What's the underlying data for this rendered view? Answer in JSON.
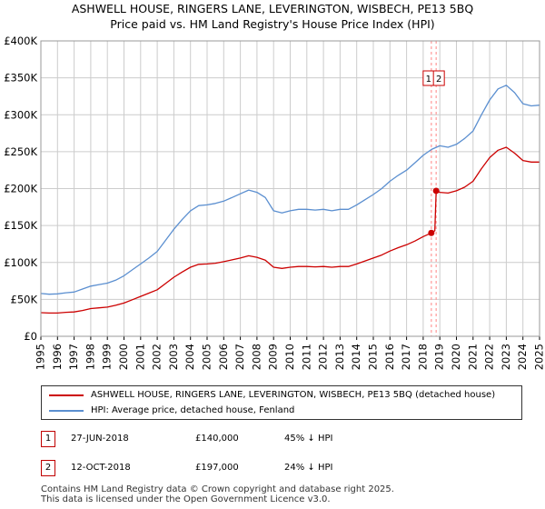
{
  "header": {
    "title_line1": "ASHWELL HOUSE, RINGERS LANE, LEVERINGTON, WISBECH, PE13 5BQ",
    "title_line2": "Price paid vs. HM Land Registry's House Price Index (HPI)"
  },
  "colors": {
    "property": "#cc0000",
    "hpi": "#5b8fd0",
    "grid": "#cccccc",
    "marker_line": "#ff9999"
  },
  "chart_data": {
    "type": "line",
    "title": "Price paid vs. HM Land Registry's House Price Index (HPI)",
    "xlabel": "",
    "ylabel": "",
    "xlim": [
      1995,
      2025
    ],
    "ylim": [
      0,
      400000
    ],
    "y_ticks": [
      {
        "value": 0,
        "label": "£0"
      },
      {
        "value": 50000,
        "label": "£50K"
      },
      {
        "value": 100000,
        "label": "£100K"
      },
      {
        "value": 150000,
        "label": "£150K"
      },
      {
        "value": 200000,
        "label": "£200K"
      },
      {
        "value": 250000,
        "label": "£250K"
      },
      {
        "value": 300000,
        "label": "£300K"
      },
      {
        "value": 350000,
        "label": "£350K"
      },
      {
        "value": 400000,
        "label": "£400K"
      }
    ],
    "x_ticks": [
      "1995",
      "1996",
      "1997",
      "1998",
      "1999",
      "2000",
      "2001",
      "2002",
      "2003",
      "2004",
      "2005",
      "2006",
      "2007",
      "2008",
      "2009",
      "2010",
      "2011",
      "2012",
      "2013",
      "2014",
      "2015",
      "2016",
      "2017",
      "2018",
      "2019",
      "2020",
      "2021",
      "2022",
      "2023",
      "2024",
      "2025"
    ],
    "series": [
      {
        "name": "HPI: Average price, detached house, Fenland",
        "color": "#5b8fd0",
        "points": [
          [
            1995,
            58000
          ],
          [
            1995.5,
            57000
          ],
          [
            1996,
            57500
          ],
          [
            1996.5,
            59000
          ],
          [
            1997,
            60000
          ],
          [
            1997.5,
            64000
          ],
          [
            1998,
            68000
          ],
          [
            1998.5,
            70000
          ],
          [
            1999,
            72000
          ],
          [
            1999.5,
            76000
          ],
          [
            2000,
            82000
          ],
          [
            2000.5,
            90000
          ],
          [
            2001,
            98000
          ],
          [
            2001.5,
            106000
          ],
          [
            2002,
            115000
          ],
          [
            2002.5,
            130000
          ],
          [
            2003,
            145000
          ],
          [
            2003.5,
            158000
          ],
          [
            2004,
            170000
          ],
          [
            2004.5,
            177000
          ],
          [
            2005,
            178000
          ],
          [
            2005.5,
            180000
          ],
          [
            2006,
            183000
          ],
          [
            2006.5,
            188000
          ],
          [
            2007,
            193000
          ],
          [
            2007.5,
            198000
          ],
          [
            2008,
            195000
          ],
          [
            2008.5,
            188000
          ],
          [
            2009,
            170000
          ],
          [
            2009.5,
            167000
          ],
          [
            2010,
            170000
          ],
          [
            2010.5,
            172000
          ],
          [
            2011,
            172000
          ],
          [
            2011.5,
            171000
          ],
          [
            2012,
            172000
          ],
          [
            2012.5,
            170000
          ],
          [
            2013,
            172000
          ],
          [
            2013.5,
            172000
          ],
          [
            2014,
            178000
          ],
          [
            2014.5,
            185000
          ],
          [
            2015,
            192000
          ],
          [
            2015.5,
            200000
          ],
          [
            2016,
            210000
          ],
          [
            2016.5,
            218000
          ],
          [
            2017,
            225000
          ],
          [
            2017.5,
            235000
          ],
          [
            2018,
            245000
          ],
          [
            2018.5,
            253000
          ],
          [
            2019,
            258000
          ],
          [
            2019.5,
            256000
          ],
          [
            2020,
            260000
          ],
          [
            2020.5,
            268000
          ],
          [
            2021,
            278000
          ],
          [
            2021.5,
            300000
          ],
          [
            2022,
            320000
          ],
          [
            2022.5,
            335000
          ],
          [
            2023,
            340000
          ],
          [
            2023.5,
            330000
          ],
          [
            2024,
            315000
          ],
          [
            2024.5,
            312000
          ],
          [
            2025,
            313000
          ]
        ]
      },
      {
        "name": "ASHWELL HOUSE, RINGERS LANE, LEVERINGTON, WISBECH, PE13 5BQ (detached house)",
        "color": "#cc0000",
        "points": [
          [
            1995,
            32000
          ],
          [
            1995.5,
            31500
          ],
          [
            1996,
            31500
          ],
          [
            1996.5,
            32500
          ],
          [
            1997,
            33000
          ],
          [
            1997.5,
            35000
          ],
          [
            1998,
            37500
          ],
          [
            1998.5,
            38500
          ],
          [
            1999,
            39500
          ],
          [
            1999.5,
            42000
          ],
          [
            2000,
            45000
          ],
          [
            2000.5,
            49500
          ],
          [
            2001,
            54000
          ],
          [
            2001.5,
            58500
          ],
          [
            2002,
            63000
          ],
          [
            2002.5,
            71500
          ],
          [
            2003,
            80000
          ],
          [
            2003.5,
            87000
          ],
          [
            2004,
            93500
          ],
          [
            2004.5,
            97500
          ],
          [
            2005,
            98000
          ],
          [
            2005.5,
            99000
          ],
          [
            2006,
            101000
          ],
          [
            2006.5,
            103500
          ],
          [
            2007,
            106000
          ],
          [
            2007.5,
            109000
          ],
          [
            2008,
            107000
          ],
          [
            2008.5,
            103000
          ],
          [
            2009,
            93500
          ],
          [
            2009.5,
            92000
          ],
          [
            2010,
            93500
          ],
          [
            2010.5,
            94500
          ],
          [
            2011,
            94500
          ],
          [
            2011.5,
            94000
          ],
          [
            2012,
            94500
          ],
          [
            2012.5,
            93500
          ],
          [
            2013,
            94500
          ],
          [
            2013.5,
            94500
          ],
          [
            2014,
            98000
          ],
          [
            2014.5,
            102000
          ],
          [
            2015,
            106000
          ],
          [
            2015.5,
            110000
          ],
          [
            2016,
            115500
          ],
          [
            2016.5,
            120000
          ],
          [
            2017,
            124000
          ],
          [
            2017.5,
            129000
          ],
          [
            2018,
            135000
          ],
          [
            2018.49,
            140000
          ],
          [
            2018.5,
            140000
          ],
          [
            2018.7,
            143000
          ],
          [
            2018.78,
            197000
          ],
          [
            2019,
            195000
          ],
          [
            2019.5,
            194000
          ],
          [
            2020,
            197000
          ],
          [
            2020.5,
            202000
          ],
          [
            2021,
            210000
          ],
          [
            2021.5,
            227000
          ],
          [
            2022,
            242000
          ],
          [
            2022.5,
            252000
          ],
          [
            2023,
            256000
          ],
          [
            2023.5,
            248000
          ],
          [
            2024,
            238000
          ],
          [
            2024.5,
            236000
          ],
          [
            2025,
            236000
          ]
        ]
      }
    ],
    "transactions": [
      {
        "marker": "1",
        "date": "27-JUN-2018",
        "x": 2018.49,
        "price": 140000,
        "price_label": "£140,000",
        "hpi_delta": "45% ↓ HPI"
      },
      {
        "marker": "2",
        "date": "12-OCT-2018",
        "x": 2018.78,
        "price": 197000,
        "price_label": "£197,000",
        "hpi_delta": "24% ↓ HPI"
      }
    ],
    "legend_position": "below"
  },
  "legend": {
    "property_label": "ASHWELL HOUSE, RINGERS LANE, LEVERINGTON, WISBECH, PE13 5BQ (detached house)",
    "hpi_label": "HPI: Average price, detached house, Fenland"
  },
  "table": {
    "rows": [
      {
        "marker": "1",
        "date": "27-JUN-2018",
        "price": "£140,000",
        "hpi": "45% ↓ HPI"
      },
      {
        "marker": "2",
        "date": "12-OCT-2018",
        "price": "£197,000",
        "hpi": "24% ↓ HPI"
      }
    ]
  },
  "footer": {
    "line1": "Contains HM Land Registry data © Crown copyright and database right 2025.",
    "line2": "This data is licensed under the Open Government Licence v3.0."
  }
}
